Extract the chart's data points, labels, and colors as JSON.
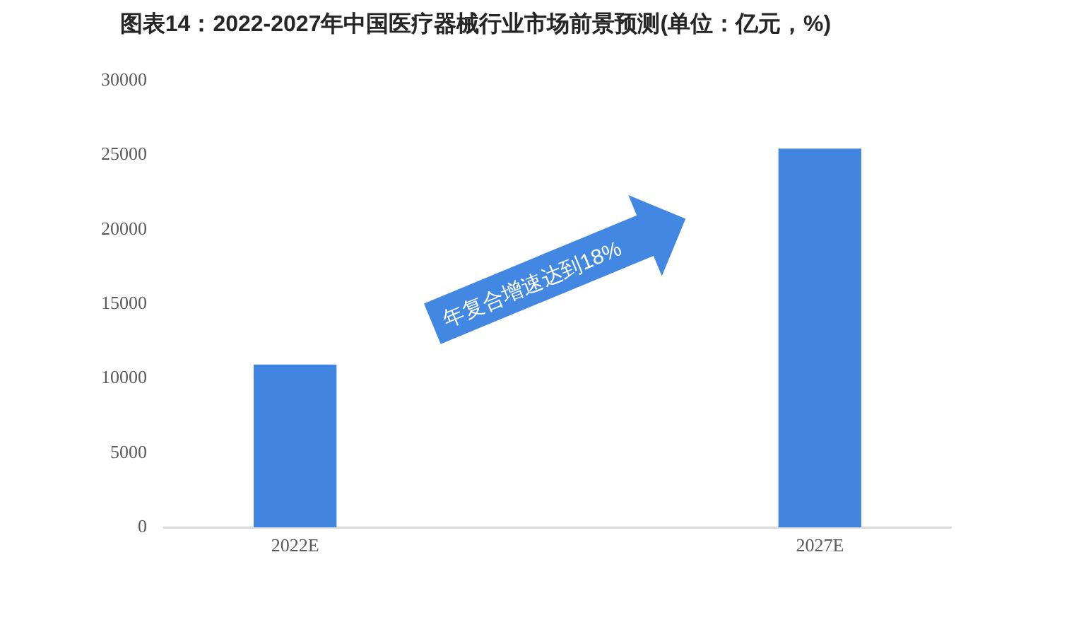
{
  "chart_data": {
    "type": "bar",
    "title": "图表14：2022-2027年中国医疗器械行业市场前景预测(单位：亿元，%)",
    "categories": [
      "2022E",
      "2027E"
    ],
    "values": [
      10900,
      25400
    ],
    "color": "#4285e1",
    "ylim": [
      0,
      30000
    ],
    "yticks": [
      0,
      5000,
      10000,
      15000,
      20000,
      25000,
      30000
    ],
    "grid": false,
    "legend": false,
    "annotations": [
      "年复合增速达到18%"
    ]
  }
}
